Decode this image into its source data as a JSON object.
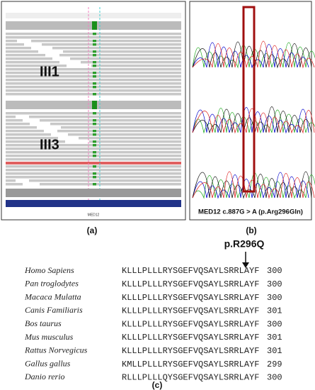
{
  "panels": {
    "a": {
      "label": "(a)",
      "samples": [
        "III1",
        "III3"
      ],
      "gene": "MED12"
    },
    "b": {
      "label": "(b)",
      "caption": "MED12 c.887G > A (p.Arg296Gln)"
    },
    "c": {
      "label": "(c)",
      "mutation": "p.R296Q",
      "rows": [
        {
          "species": "Homo Sapiens",
          "sequence": "KLLLPLLLRYSGEFVQSAYLSRRLAYF",
          "position": 300
        },
        {
          "species": "Pan troglodytes",
          "sequence": "KLLLPLLLRYSGEFVQSAYLSRRLAYF",
          "position": 300
        },
        {
          "species": "Macaca Mulatta",
          "sequence": "KLLLPLLLRYSGEFVQSAYLSRRLAYF",
          "position": 300
        },
        {
          "species": "Canis Familiaris",
          "sequence": "KLLLPLLLRYSGEFVQSAYLSRRLAYF",
          "position": 301
        },
        {
          "species": "Bos taurus",
          "sequence": "KLLLPLLLRYSGEFVQSAYLSRRLAYF",
          "position": 300
        },
        {
          "species": "Mus musculus",
          "sequence": "KLLLPLLLRYSGEFVQSAYLSRRLAYF",
          "position": 301
        },
        {
          "species": "Rattus Norvegicus",
          "sequence": "KLLLPLLLRYSGEFVQSAYLSRRLAYF",
          "position": 301
        },
        {
          "species": "Gallus gallus",
          "sequence": "KMLLPLLLRYSGEFVQSAYLSRRLAYF",
          "position": 299
        },
        {
          "species": "Danio rerio",
          "sequence": "RLLLPLLLQYSGEFVQSAYLSRRLAYF",
          "position": 300
        }
      ]
    }
  }
}
